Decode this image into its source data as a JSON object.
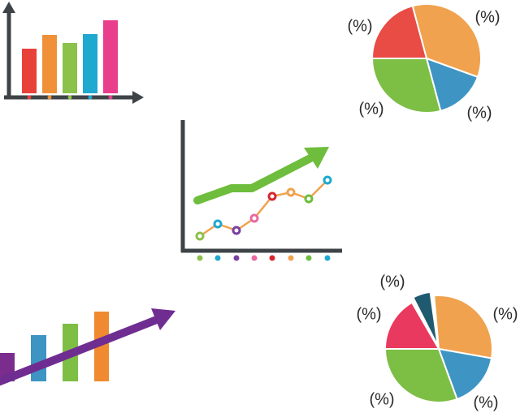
{
  "pie_top": {
    "labels": [
      "(%)",
      "(%)",
      "(%)",
      "(%)"
    ]
  },
  "pie_bottom": {
    "labels": [
      "(%)",
      "(%)",
      "(%)",
      "(%)",
      "(%)"
    ]
  }
}
